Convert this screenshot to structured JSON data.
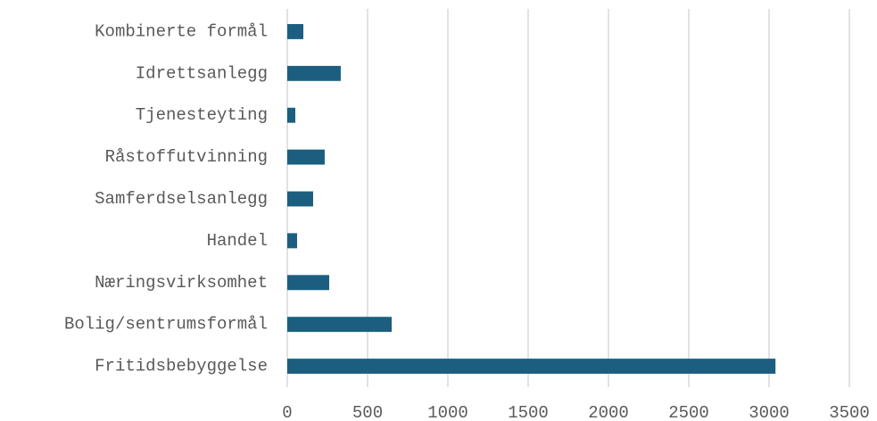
{
  "chart_data": {
    "type": "bar",
    "orientation": "horizontal",
    "categories": [
      "Kombinerte formål",
      "Idrettsanlegg",
      "Tjenesteyting",
      "Råstoffutvinning",
      "Samferdselsanlegg",
      "Handel",
      "Næringsvirksomhet",
      "Bolig/sentrumsformål",
      "Fritidsbebyggelse"
    ],
    "values": [
      100,
      333,
      50,
      233,
      161,
      61,
      261,
      650,
      3040
    ],
    "color": "#1b5e80",
    "xlim": [
      0,
      3500
    ],
    "xticks": [
      0,
      500,
      1000,
      1500,
      2000,
      2500,
      3000,
      3500
    ],
    "grid": true
  }
}
